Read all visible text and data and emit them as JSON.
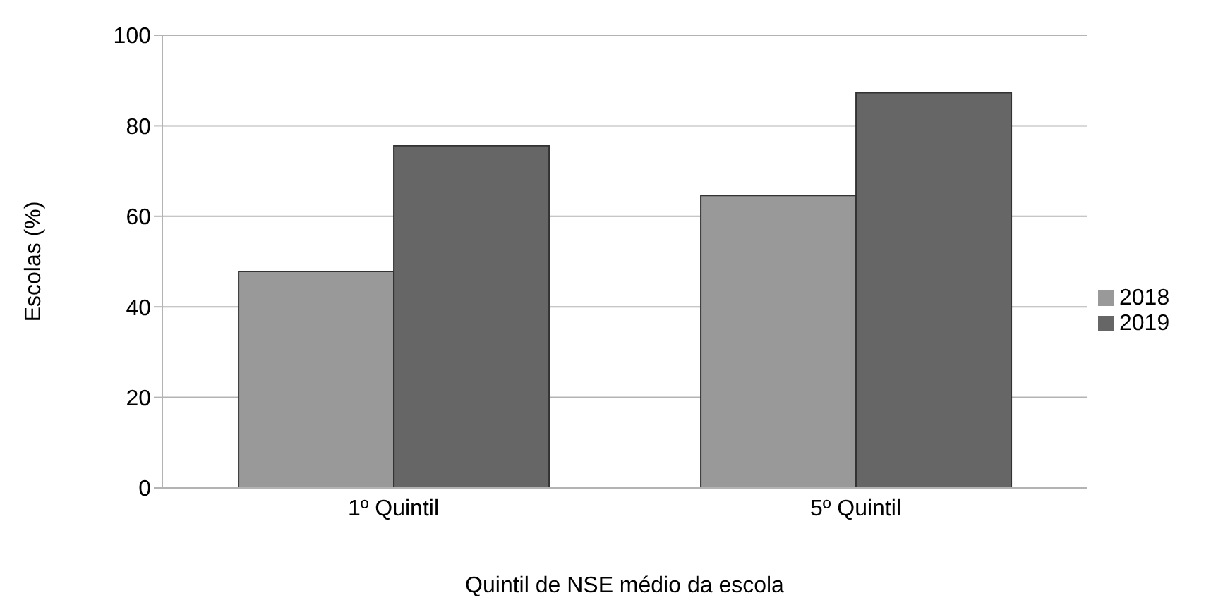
{
  "chart_data": {
    "type": "bar",
    "xlabel": "Quintil de NSE médio da escola",
    "ylabel": "Escolas (%)",
    "categories": [
      "1º Quintil",
      "5º Quintil"
    ],
    "series": [
      {
        "name": "2018",
        "color": "#999999",
        "values": [
          47.8,
          64.6
        ]
      },
      {
        "name": "2019",
        "color": "#666666",
        "values": [
          75.6,
          87.3
        ]
      }
    ],
    "ylim": [
      0,
      100
    ],
    "yticks": [
      0,
      20,
      40,
      60,
      80,
      100
    ],
    "grid": "y",
    "legend": "right"
  }
}
